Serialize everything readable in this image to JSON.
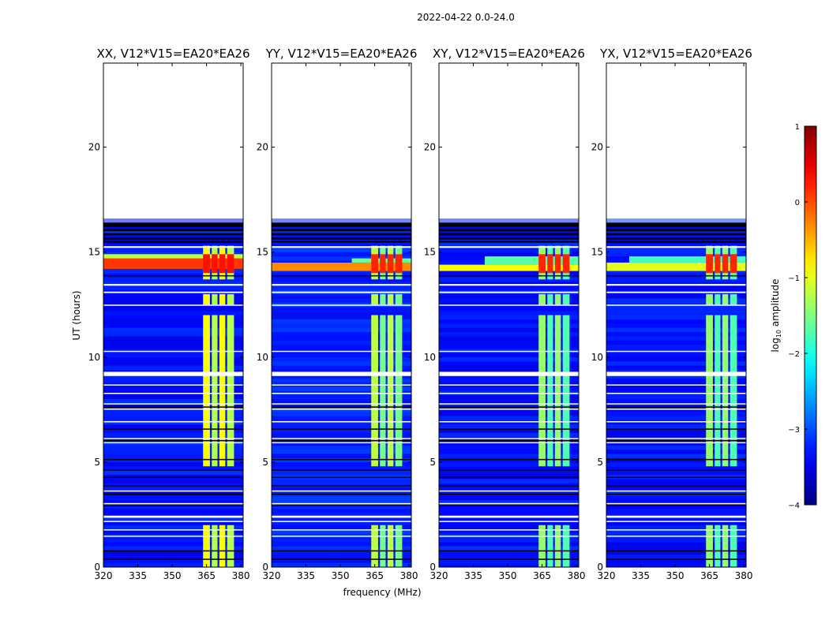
{
  "chart_data": {
    "type": "heatmap",
    "suptitle": "2022-04-22 0.0-24.0",
    "xlabel": "frequency (MHz)",
    "ylabel": "UT (hours)",
    "xlim": [
      320,
      381
    ],
    "ylim": [
      0,
      24
    ],
    "xticks": [
      320,
      335,
      350,
      365,
      380
    ],
    "yticks": [
      0,
      5,
      10,
      15,
      20
    ],
    "colormap": "jet",
    "colorbar": {
      "label": "log10 amplitude",
      "label_main": "log",
      "label_sub": "10",
      "label_rest": " amplitude",
      "range": [
        -4,
        1
      ],
      "ticks": [
        1,
        0,
        -1,
        -2,
        -3,
        -4
      ],
      "tick_labels": [
        "1",
        "0",
        "−1",
        "−2",
        "−3",
        "−4"
      ]
    },
    "data_end_ut": 16.4,
    "flagged_black_rows_ut": [
      [
        16.2,
        16.4
      ],
      [
        16.0,
        16.1
      ],
      [
        15.8,
        15.9
      ],
      [
        15.6,
        15.7
      ],
      [
        15.45,
        15.55
      ],
      [
        13.85,
        13.9
      ],
      [
        7.6,
        7.65
      ],
      [
        6.55,
        6.6
      ],
      [
        6.0,
        6.05
      ],
      [
        5.1,
        5.15
      ],
      [
        4.6,
        4.65
      ],
      [
        4.25,
        4.3
      ],
      [
        3.85,
        3.9
      ],
      [
        3.45,
        3.5
      ],
      [
        2.9,
        2.95
      ],
      [
        0.75,
        0.8
      ],
      [
        0.35,
        0.4
      ]
    ],
    "flagged_white_rows_ut": [
      [
        15.2,
        15.28
      ],
      [
        13.4,
        13.48
      ],
      [
        13.05,
        13.12
      ],
      [
        12.45,
        12.5
      ],
      [
        10.25,
        10.3
      ],
      [
        9.1,
        9.3
      ],
      [
        8.65,
        8.7
      ],
      [
        8.25,
        8.3
      ],
      [
        7.75,
        7.8
      ],
      [
        7.5,
        7.55
      ],
      [
        6.9,
        6.95
      ],
      [
        6.1,
        6.15
      ],
      [
        5.9,
        5.95
      ],
      [
        3.6,
        3.65
      ],
      [
        3.0,
        3.05
      ],
      [
        2.35,
        2.45
      ],
      [
        2.15,
        2.2
      ],
      [
        1.75,
        1.8
      ],
      [
        1.45,
        1.5
      ]
    ],
    "rfi_channel_blocks_mhz": [
      [
        363.5,
        366.5
      ],
      [
        367.3,
        369.8
      ],
      [
        370.6,
        373.2
      ],
      [
        374.0,
        377.0
      ]
    ],
    "rfi_active_ut": [
      [
        0,
        2.0
      ],
      [
        4.8,
        12.0
      ],
      [
        12.5,
        13.0
      ],
      [
        13.7,
        15.3
      ]
    ],
    "bright_event_ut": [
      14.0,
      14.9
    ],
    "panels": [
      {
        "title": "XX, V12*V15=EA20*EA26",
        "background_log_amp": -3.3,
        "rfi_log_amp": -1.0,
        "event_log_amp": 0.3,
        "event_bands": [
          {
            "ut": [
              14.2,
              14.7
            ],
            "mhz": [
              320,
              381
            ],
            "level": 0.1
          },
          {
            "ut": [
              14.7,
              14.9
            ],
            "mhz": [
              320,
              381
            ],
            "level": -1.2
          }
        ]
      },
      {
        "title": "YY, V12*V15=EA20*EA26",
        "background_log_amp": -3.2,
        "rfi_log_amp": -1.3,
        "event_log_amp": 0.2,
        "event_bands": [
          {
            "ut": [
              14.1,
              14.5
            ],
            "mhz": [
              320,
              381
            ],
            "level": -0.3
          },
          {
            "ut": [
              14.5,
              14.7
            ],
            "mhz": [
              355,
              381
            ],
            "level": -1.6
          }
        ]
      },
      {
        "title": "XY, V12*V15=EA20*EA26",
        "background_log_amp": -3.3,
        "rfi_log_amp": -1.5,
        "event_log_amp": 0.2,
        "event_bands": [
          {
            "ut": [
              14.1,
              14.4
            ],
            "mhz": [
              320,
              381
            ],
            "level": -0.9
          },
          {
            "ut": [
              14.4,
              14.8
            ],
            "mhz": [
              340,
              381
            ],
            "level": -1.7
          }
        ]
      },
      {
        "title": "YX, V12*V15=EA20*EA26",
        "background_log_amp": -3.3,
        "rfi_log_amp": -1.5,
        "event_log_amp": 0.2,
        "event_bands": [
          {
            "ut": [
              14.1,
              14.5
            ],
            "mhz": [
              320,
              381
            ],
            "level": -1.0
          },
          {
            "ut": [
              14.5,
              14.8
            ],
            "mhz": [
              330,
              381
            ],
            "level": -1.8
          }
        ]
      }
    ]
  }
}
